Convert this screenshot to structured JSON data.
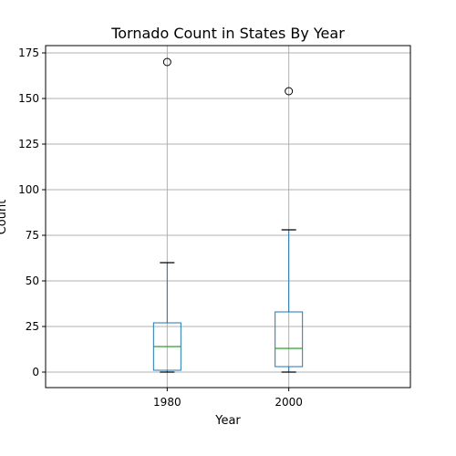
{
  "chart_data": {
    "type": "boxplot",
    "title": "Tornado Count in States By Year",
    "xlabel": "Year",
    "ylabel": "Count",
    "categories": [
      "1980",
      "2000"
    ],
    "ylim": [
      -8.5,
      179
    ],
    "yticks": [
      0,
      25,
      50,
      75,
      100,
      125,
      150,
      175
    ],
    "grid": true,
    "boxes": [
      {
        "category": "1980",
        "whisker_low": 0,
        "q1": 1,
        "median": 14,
        "q3": 27,
        "whisker_high": 60,
        "outliers": [
          170
        ]
      },
      {
        "category": "2000",
        "whisker_low": 0,
        "q1": 3,
        "median": 13,
        "q3": 33,
        "whisker_high": 78,
        "outliers": [
          154
        ]
      }
    ],
    "colors": {
      "box": "#1f77b4",
      "median": "#2ca02c",
      "whisker_cap": "#000000",
      "grid": "#b0b0b0",
      "outlier": "#000000"
    }
  }
}
